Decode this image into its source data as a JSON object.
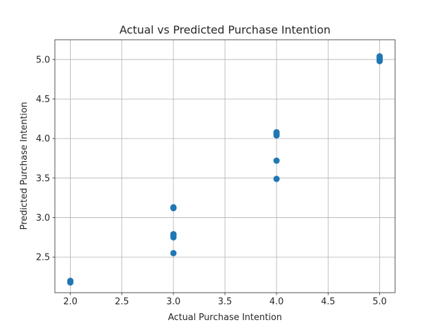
{
  "chart_data": {
    "type": "scatter",
    "title": "Actual vs Predicted Purchase Intention",
    "xlabel": "Actual Purchase Intention",
    "ylabel": "Predicted Purchase Intention",
    "xlim": [
      1.85,
      5.15
    ],
    "ylim": [
      2.05,
      5.25
    ],
    "xticks": [
      2.0,
      2.5,
      3.0,
      3.5,
      4.0,
      4.5,
      5.0
    ],
    "yticks": [
      2.5,
      3.0,
      3.5,
      4.0,
      4.5,
      5.0
    ],
    "xtick_labels": [
      "2.0",
      "2.5",
      "3.0",
      "3.5",
      "4.0",
      "4.5",
      "5.0"
    ],
    "ytick_labels": [
      "2.5",
      "3.0",
      "3.5",
      "4.0",
      "4.5",
      "5.0"
    ],
    "grid": true,
    "color": "#1f77b4",
    "points": [
      {
        "x": 2.0,
        "y": 2.18
      },
      {
        "x": 2.0,
        "y": 2.2
      },
      {
        "x": 3.0,
        "y": 2.55
      },
      {
        "x": 3.0,
        "y": 2.75
      },
      {
        "x": 3.0,
        "y": 2.77
      },
      {
        "x": 3.0,
        "y": 2.79
      },
      {
        "x": 3.0,
        "y": 3.12
      },
      {
        "x": 3.0,
        "y": 3.13
      },
      {
        "x": 4.0,
        "y": 3.49
      },
      {
        "x": 4.0,
        "y": 3.72
      },
      {
        "x": 4.0,
        "y": 4.04
      },
      {
        "x": 4.0,
        "y": 4.06
      },
      {
        "x": 4.0,
        "y": 4.08
      },
      {
        "x": 5.0,
        "y": 4.98
      },
      {
        "x": 5.0,
        "y": 5.0
      },
      {
        "x": 5.0,
        "y": 5.02
      },
      {
        "x": 5.0,
        "y": 5.04
      }
    ]
  }
}
